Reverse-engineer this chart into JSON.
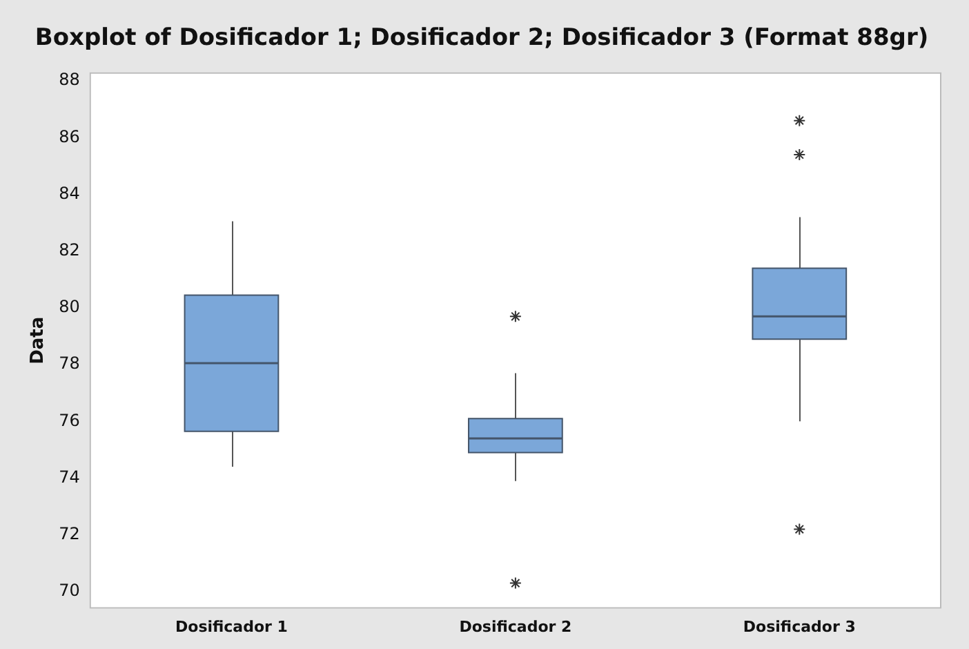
{
  "chart_data": {
    "type": "box",
    "title": "Boxplot of Dosificador 1; Dosificador 2; Dosificador 3 (Format 88gr)",
    "ylabel": "Data",
    "categories": [
      "Dosificador 1",
      "Dosificador 2",
      "Dosificador 3"
    ],
    "color": "#7ba7d9",
    "boxes": [
      {
        "low": 74.4,
        "q1": 75.65,
        "median": 78.05,
        "q3": 80.45,
        "high": 83.05
      },
      {
        "low": 73.9,
        "q1": 74.9,
        "median": 75.4,
        "q3": 76.1,
        "high": 77.7,
        "outliers": [
          79.7,
          70.3
        ]
      },
      {
        "low": 76.0,
        "q1": 78.9,
        "median": 79.7,
        "q3": 81.4,
        "high": 83.2,
        "outliers": [
          86.6,
          85.4,
          72.2
        ]
      }
    ],
    "ylim": [
      69.4,
      88.3
    ],
    "yticks": [
      70,
      72,
      74,
      76,
      78,
      80,
      82,
      84,
      86,
      88
    ],
    "grid": false,
    "legend": false,
    "marker": "star"
  }
}
